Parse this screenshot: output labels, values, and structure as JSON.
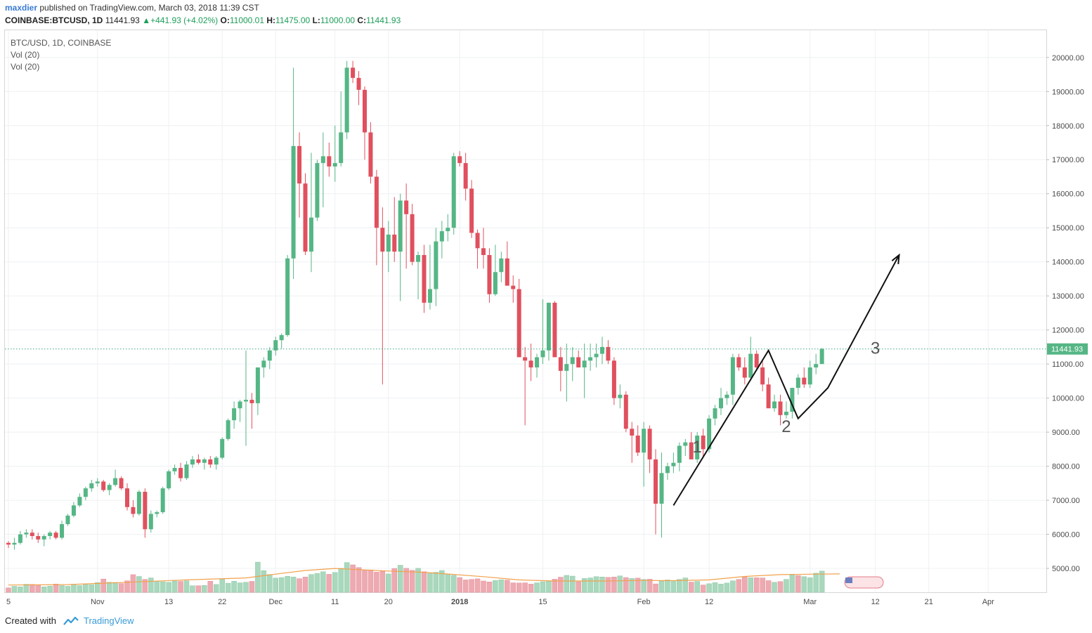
{
  "header": {
    "author": "maxdier",
    "published_text": "published on TradingView.com, March 03, 2018 11:39 CST",
    "symbol": "COINBASE:BTCUSD, 1D",
    "last": "11441.93",
    "change": "+441.93 (+4.02%)",
    "o_label": "O:",
    "o_value": "11000.01",
    "h_label": "H:",
    "h_value": "11475.00",
    "l_label": "L:",
    "l_value": "11000.00",
    "c_label": "C:",
    "c_value": "11441.93"
  },
  "legend": {
    "title": "BTC/USD, 1D, COINBASE",
    "vol1": "Vol (20)",
    "vol2": "Vol (20)"
  },
  "footer": {
    "created_with": "Created with",
    "brand": "TradingView"
  },
  "colors": {
    "up": "#55b685",
    "down": "#e0505e",
    "vol_up": "#a9d8bd",
    "vol_down": "#eeaab1",
    "ma": "#f2a14b",
    "grid": "#eef0f3",
    "price_line": "#3aa586"
  },
  "chart_data": {
    "type": "candlestick",
    "title": "BTC/USD, 1D, COINBASE",
    "ylim": [
      4300,
      20800
    ],
    "yticks": [
      5000,
      6000,
      7000,
      8000,
      9000,
      10000,
      11000,
      12000,
      13000,
      14000,
      15000,
      16000,
      17000,
      18000,
      19000,
      20000
    ],
    "ytick_labels": [
      "5000.00",
      "6000.00",
      "7000.00",
      "8000.00",
      "9000.00",
      "10000.00",
      "11000.00",
      "12000.00",
      "13000.00",
      "14000.00",
      "15000.00",
      "16000.00",
      "17000.00",
      "18000.00",
      "19000.00",
      "20000.00"
    ],
    "x_labels": [
      {
        "label": "5",
        "day": 0
      },
      {
        "label": "Nov",
        "day": 15
      },
      {
        "label": "13",
        "day": 27
      },
      {
        "label": "22",
        "day": 36
      },
      {
        "label": "Dec",
        "day": 45
      },
      {
        "label": "11",
        "day": 55
      },
      {
        "label": "20",
        "day": 64
      },
      {
        "label": "2018",
        "day": 76
      },
      {
        "label": "15",
        "day": 90
      },
      {
        "label": "Feb",
        "day": 107
      },
      {
        "label": "12",
        "day": 118
      },
      {
        "label": "Mar",
        "day": 135
      },
      {
        "label": "12",
        "day": 146
      },
      {
        "label": "21",
        "day": 155
      },
      {
        "label": "Apr",
        "day": 165
      }
    ],
    "last_price": 11441.93,
    "last_price_label": "11441.93",
    "ohlc": [
      [
        5750,
        5800,
        5600,
        5700
      ],
      [
        5700,
        5900,
        5550,
        5750
      ],
      [
        5750,
        6100,
        5700,
        6000
      ],
      [
        6000,
        6150,
        5900,
        6050
      ],
      [
        6050,
        6150,
        5850,
        5950
      ],
      [
        5950,
        6050,
        5750,
        5850
      ],
      [
        5850,
        6000,
        5650,
        5950
      ],
      [
        5950,
        6100,
        5850,
        6050
      ],
      [
        6050,
        6100,
        5850,
        5900
      ],
      [
        5900,
        6400,
        5850,
        6300
      ],
      [
        6300,
        6600,
        6250,
        6550
      ],
      [
        6550,
        6950,
        6500,
        6850
      ],
      [
        6850,
        7200,
        6800,
        7100
      ],
      [
        7100,
        7400,
        7000,
        7350
      ],
      [
        7350,
        7600,
        7250,
        7500
      ],
      [
        7500,
        7650,
        7400,
        7550
      ],
      [
        7550,
        7600,
        7250,
        7300
      ],
      [
        7300,
        7500,
        7150,
        7450
      ],
      [
        7450,
        7900,
        7400,
        7650
      ],
      [
        7650,
        7700,
        7300,
        7350
      ],
      [
        7350,
        7500,
        6700,
        6800
      ],
      [
        6800,
        7000,
        6500,
        6600
      ],
      [
        6600,
        7300,
        6550,
        7250
      ],
      [
        7250,
        7350,
        5900,
        6150
      ],
      [
        6150,
        6700,
        6050,
        6600
      ],
      [
        6600,
        6700,
        6500,
        6650
      ],
      [
        6650,
        7400,
        6600,
        7350
      ],
      [
        7350,
        7900,
        7300,
        7850
      ],
      [
        7850,
        8050,
        7750,
        7950
      ],
      [
        7950,
        8100,
        7550,
        7650
      ],
      [
        7650,
        8150,
        7600,
        8050
      ],
      [
        8050,
        8300,
        7950,
        8200
      ],
      [
        8200,
        8350,
        8050,
        8100
      ],
      [
        8100,
        8250,
        7900,
        8200
      ],
      [
        8200,
        8300,
        7950,
        8050
      ],
      [
        8050,
        8300,
        7900,
        8250
      ],
      [
        8250,
        8850,
        8200,
        8800
      ],
      [
        8800,
        9400,
        8750,
        9350
      ],
      [
        9350,
        9900,
        9100,
        9700
      ],
      [
        9700,
        9950,
        9300,
        9900
      ],
      [
        9900,
        11400,
        8600,
        9950
      ],
      [
        9950,
        10150,
        9100,
        9850
      ],
      [
        9850,
        10900,
        9500,
        10900
      ],
      [
        10900,
        11200,
        10600,
        11100
      ],
      [
        11100,
        11500,
        10850,
        11400
      ],
      [
        11400,
        11800,
        11250,
        11700
      ],
      [
        11700,
        11900,
        11450,
        11850
      ],
      [
        11850,
        14200,
        11800,
        14100
      ],
      [
        14100,
        19700,
        13500,
        17400
      ],
      [
        17400,
        17800,
        15300,
        16300
      ],
      [
        16300,
        16600,
        14200,
        14300
      ],
      [
        14300,
        17200,
        13700,
        15300
      ],
      [
        15300,
        17000,
        15200,
        16900
      ],
      [
        16900,
        17800,
        15600,
        17100
      ],
      [
        17100,
        17500,
        16500,
        16800
      ],
      [
        16800,
        18000,
        16350,
        16900
      ],
      [
        16900,
        19000,
        16800,
        17800
      ],
      [
        17800,
        19900,
        17600,
        19700
      ],
      [
        19700,
        19900,
        19250,
        19400
      ],
      [
        19400,
        19600,
        18600,
        19050
      ],
      [
        19050,
        19150,
        17000,
        17800
      ],
      [
        17800,
        18100,
        16300,
        16500
      ],
      [
        16500,
        16700,
        13900,
        15000
      ],
      [
        15000,
        15600,
        10400,
        14300
      ],
      [
        14300,
        15200,
        13700,
        14800
      ],
      [
        14800,
        15900,
        14000,
        14300
      ],
      [
        14300,
        16000,
        12850,
        15800
      ],
      [
        15800,
        16300,
        13800,
        15400
      ],
      [
        15400,
        15700,
        13900,
        14000
      ],
      [
        14000,
        14300,
        12900,
        14200
      ],
      [
        14200,
        14500,
        12500,
        12800
      ],
      [
        12800,
        14500,
        12600,
        13200
      ],
      [
        13200,
        15000,
        12700,
        14600
      ],
      [
        14600,
        15200,
        14100,
        14900
      ],
      [
        14900,
        15400,
        14600,
        15000
      ],
      [
        15000,
        17200,
        14800,
        17100
      ],
      [
        17100,
        17250,
        16800,
        16900
      ],
      [
        16900,
        17200,
        15800,
        16150
      ],
      [
        16150,
        16400,
        14700,
        14850
      ],
      [
        14850,
        14950,
        13800,
        14400
      ],
      [
        14400,
        15000,
        13800,
        14200
      ],
      [
        14200,
        14400,
        12800,
        13050
      ],
      [
        13050,
        14500,
        13000,
        13700
      ],
      [
        13700,
        14300,
        13400,
        14100
      ],
      [
        14100,
        14600,
        13300,
        13300
      ],
      [
        13300,
        13600,
        12800,
        13200
      ],
      [
        13200,
        13500,
        11200,
        11200
      ],
      [
        11200,
        11500,
        9200,
        11100
      ],
      [
        11100,
        11600,
        10500,
        10900
      ],
      [
        10900,
        11300,
        10600,
        11200
      ],
      [
        11200,
        12900,
        11000,
        11400
      ],
      [
        11400,
        12800,
        11100,
        12800
      ],
      [
        12800,
        12850,
        11300,
        11200
      ],
      [
        11200,
        11500,
        10200,
        10800
      ],
      [
        10800,
        11600,
        9900,
        11000
      ],
      [
        11000,
        11500,
        10500,
        11200
      ],
      [
        11200,
        11400,
        10900,
        10900
      ],
      [
        10900,
        11600,
        10000,
        11100
      ],
      [
        11100,
        11600,
        10800,
        11200
      ],
      [
        11200,
        11600,
        10900,
        11300
      ],
      [
        11300,
        11800,
        11000,
        11500
      ],
      [
        11500,
        11700,
        11000,
        11100
      ],
      [
        11100,
        11200,
        9800,
        10000
      ],
      [
        10000,
        10400,
        9700,
        10100
      ],
      [
        10100,
        10200,
        9000,
        9100
      ],
      [
        9100,
        9300,
        8100,
        8900
      ],
      [
        8900,
        9200,
        8300,
        8400
      ],
      [
        8400,
        9300,
        7400,
        9100
      ],
      [
        9100,
        9200,
        7800,
        8200
      ],
      [
        8200,
        8500,
        6000,
        6900
      ],
      [
        6900,
        8400,
        5900,
        7800
      ],
      [
        7800,
        8100,
        7600,
        8000
      ],
      [
        8000,
        8400,
        7800,
        8100
      ],
      [
        8100,
        8700,
        7850,
        8600
      ],
      [
        8600,
        8800,
        8300,
        8700
      ],
      [
        8700,
        9000,
        8300,
        8200
      ],
      [
        8200,
        9000,
        8100,
        8900
      ],
      [
        8900,
        9100,
        8300,
        8500
      ],
      [
        8500,
        9500,
        8400,
        9400
      ],
      [
        9400,
        9800,
        9200,
        9700
      ],
      [
        9700,
        10300,
        9500,
        10000
      ],
      [
        10000,
        10200,
        9800,
        10100
      ],
      [
        10100,
        11300,
        9800,
        11200
      ],
      [
        11200,
        11300,
        10800,
        10900
      ],
      [
        10900,
        11200,
        10400,
        10600
      ],
      [
        10600,
        11800,
        10500,
        11300
      ],
      [
        11300,
        11400,
        10800,
        10900
      ],
      [
        10900,
        11100,
        10200,
        10400
      ],
      [
        10400,
        10600,
        9800,
        9700
      ],
      [
        9700,
        10100,
        9600,
        9900
      ],
      [
        9900,
        10100,
        9200,
        9500
      ],
      [
        9500,
        9900,
        9400,
        9600
      ],
      [
        9600,
        10300,
        9400,
        10300
      ],
      [
        10300,
        10700,
        10100,
        10600
      ],
      [
        10600,
        10900,
        10300,
        10400
      ],
      [
        10400,
        11100,
        10300,
        10900
      ],
      [
        10900,
        11300,
        10700,
        11000
      ],
      [
        11000,
        11475,
        11000,
        11441.93
      ]
    ],
    "volume": [
      24,
      33,
      30,
      44,
      43,
      40,
      30,
      34,
      45,
      37,
      33,
      44,
      37,
      46,
      42,
      53,
      73,
      55,
      54,
      48,
      63,
      97,
      87,
      71,
      79,
      61,
      58,
      55,
      62,
      60,
      63,
      36,
      36,
      38,
      61,
      43,
      73,
      50,
      61,
      52,
      55,
      60,
      166,
      119,
      98,
      78,
      81,
      88,
      84,
      75,
      84,
      98,
      104,
      113,
      99,
      109,
      132,
      164,
      151,
      136,
      120,
      123,
      111,
      116,
      101,
      131,
      149,
      132,
      121,
      132,
      113,
      104,
      110,
      120,
      100,
      93,
      81,
      68,
      71,
      74,
      62,
      57,
      65,
      69,
      67,
      52,
      51,
      52,
      45,
      52,
      58,
      62,
      72,
      83,
      93,
      89,
      58,
      76,
      79,
      86,
      84,
      82,
      84,
      90,
      81,
      76,
      78,
      71,
      72,
      46,
      62,
      68,
      60,
      71,
      79,
      56,
      60,
      40,
      47,
      53,
      45,
      51,
      63,
      71,
      84,
      80,
      80,
      79,
      64,
      55,
      59,
      71,
      96,
      92,
      86,
      80,
      105,
      117
    ],
    "volume_up": [
      false,
      true,
      true,
      true,
      false,
      false,
      true,
      true,
      false,
      true,
      true,
      true,
      true,
      true,
      true,
      true,
      false,
      true,
      true,
      false,
      false,
      false,
      true,
      false,
      true,
      true,
      true,
      true,
      true,
      false,
      true,
      true,
      false,
      true,
      false,
      true,
      true,
      true,
      true,
      true,
      true,
      false,
      true,
      true,
      true,
      true,
      true,
      true,
      true,
      false,
      false,
      true,
      true,
      true,
      false,
      true,
      true,
      true,
      false,
      false,
      false,
      false,
      false,
      false,
      true,
      false,
      true,
      false,
      false,
      true,
      false,
      true,
      true,
      true,
      true,
      true,
      false,
      false,
      false,
      false,
      false,
      false,
      true,
      true,
      false,
      false,
      false,
      false,
      false,
      true,
      true,
      true,
      false,
      false,
      true,
      true,
      false,
      true,
      true,
      true,
      true,
      false,
      false,
      true,
      false,
      true,
      false,
      true,
      false,
      false,
      true,
      true,
      true,
      true,
      true,
      false,
      true,
      false,
      true,
      true,
      true,
      true,
      true,
      false,
      false,
      true,
      false,
      false,
      false,
      true,
      false,
      true,
      true,
      false,
      true,
      true,
      true,
      true
    ],
    "ma_points": [
      [
        0,
        40
      ],
      [
        10,
        42
      ],
      [
        20,
        55
      ],
      [
        30,
        68
      ],
      [
        40,
        79
      ],
      [
        45,
        100
      ],
      [
        50,
        120
      ],
      [
        55,
        131
      ],
      [
        64,
        117
      ],
      [
        70,
        110
      ],
      [
        80,
        86
      ],
      [
        86,
        68
      ],
      [
        92,
        62
      ],
      [
        100,
        62
      ],
      [
        107,
        65
      ],
      [
        112,
        64
      ],
      [
        118,
        68
      ],
      [
        124,
        87
      ],
      [
        130,
        97
      ],
      [
        136,
        100
      ],
      [
        140,
        101
      ]
    ],
    "volume_max": 170,
    "volume_axis_top_value": 5000,
    "annotations": [
      {
        "label": "1",
        "day": 116,
        "price": 8400
      },
      {
        "label": "2",
        "day": 131,
        "price": 9000
      },
      {
        "label": "3",
        "day": 146,
        "price": 11300
      }
    ],
    "wave_path": [
      [
        112,
        6850
      ],
      [
        128,
        11400
      ],
      [
        133,
        9400
      ],
      [
        138,
        10300
      ],
      [
        150,
        14200
      ]
    ],
    "series_legend": [
      "BTC/USD, 1D, COINBASE",
      "Vol (20)",
      "Vol (20)"
    ]
  }
}
